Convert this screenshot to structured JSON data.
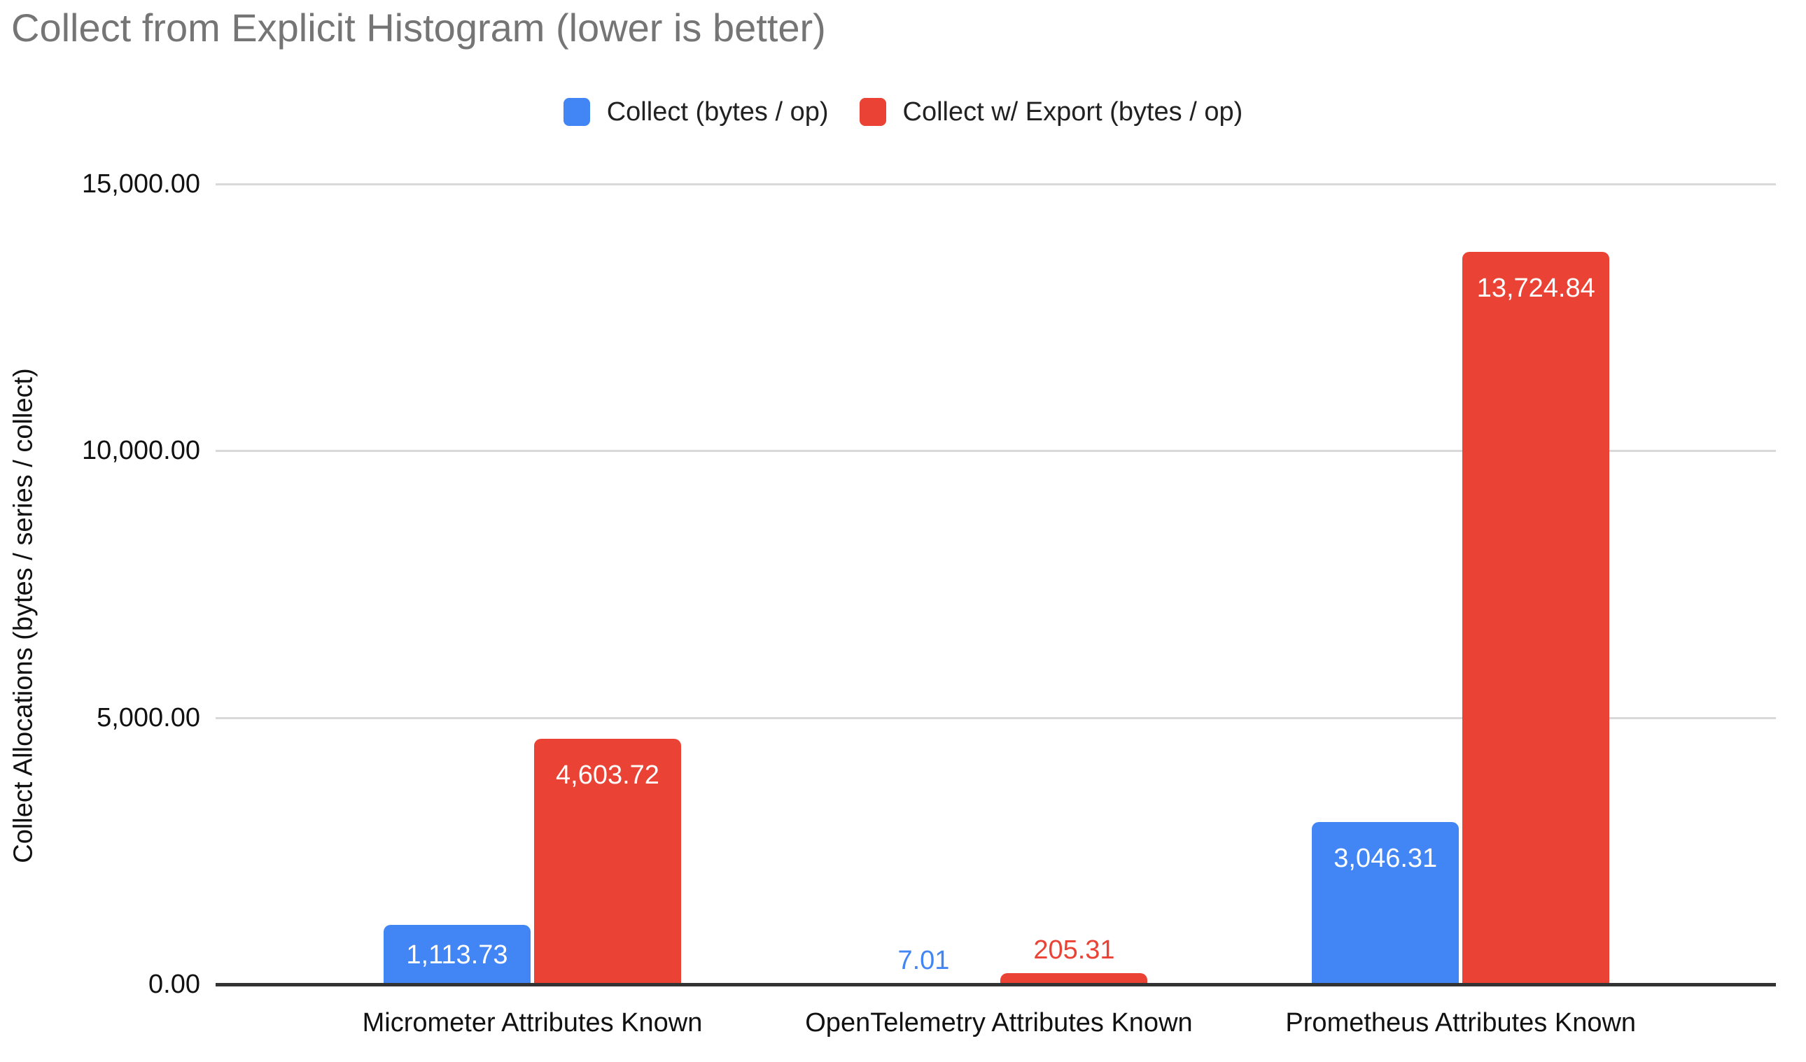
{
  "chart_data": {
    "type": "bar",
    "title": "Collect from Explicit Histogram (lower is better)",
    "ylabel": "Collect Allocations (bytes / series / collect)",
    "xlabel": "",
    "categories": [
      "Micrometer Attributes Known",
      "OpenTelemetry Attributes Known",
      "Prometheus Attributes Known"
    ],
    "series": [
      {
        "name": "Collect (bytes / op)",
        "color": "#4285f4",
        "values": [
          1113.73,
          7.01,
          3046.31
        ],
        "labels": [
          "1,113.73",
          "7.01",
          "3,046.31"
        ]
      },
      {
        "name": "Collect w/ Export (bytes / op)",
        "color": "#ea4335",
        "values": [
          4603.72,
          205.31,
          13724.84
        ],
        "labels": [
          "4,603.72",
          "205.31",
          "13,724.84"
        ]
      }
    ],
    "ylim": [
      0,
      15000
    ],
    "yticks": [
      {
        "value": 0,
        "label": "0.00"
      },
      {
        "value": 5000,
        "label": "5,000.00"
      },
      {
        "value": 10000,
        "label": "10,000.00"
      },
      {
        "value": 15000,
        "label": "15,000.00"
      }
    ],
    "grid": true,
    "legend_position": "top",
    "inside_label_color": "#ffffff"
  },
  "colors": {
    "title_text": "#757575",
    "axis_text": "#111111",
    "gridline": "#d9d9d9",
    "baseline": "#333333",
    "background": "#ffffff"
  }
}
